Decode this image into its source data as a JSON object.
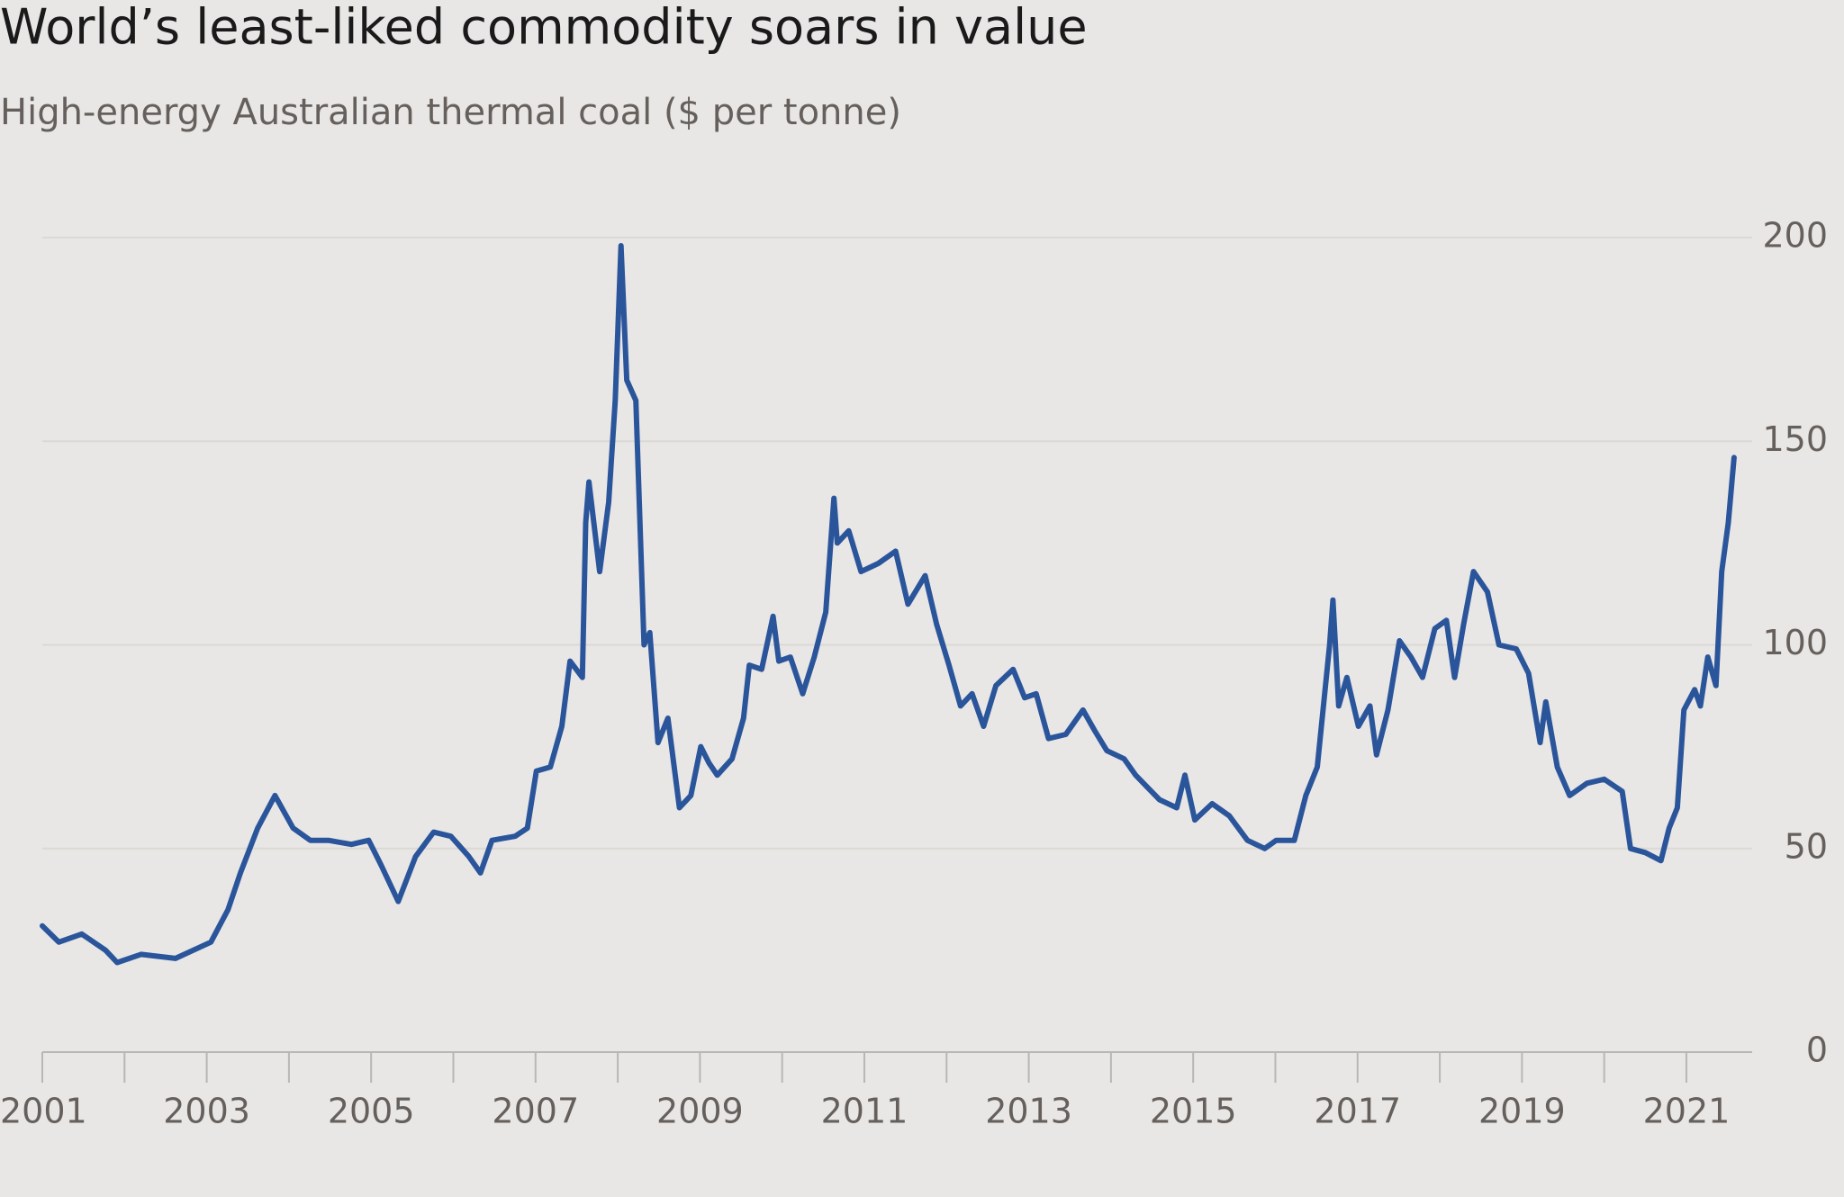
{
  "chart_data": {
    "type": "line",
    "title": "World’s least-liked commodity soars in value",
    "subtitle": "High-energy Australian thermal coal ($ per tonne)",
    "x": [
      2001.0,
      2001.2,
      2001.48,
      2001.77,
      2001.91,
      2002.2,
      2002.62,
      2003.05,
      2003.26,
      2003.41,
      2003.62,
      2003.83,
      2004.05,
      2004.26,
      2004.48,
      2004.76,
      2004.97,
      2005.12,
      2005.33,
      2005.54,
      2005.76,
      2005.97,
      2006.19,
      2006.33,
      2006.47,
      2006.75,
      2006.9,
      2007.01,
      2007.18,
      2007.32,
      2007.42,
      2007.57,
      2007.61,
      2007.65,
      2007.78,
      2007.89,
      2007.97,
      2008.04,
      2008.11,
      2008.22,
      2008.32,
      2008.39,
      2008.49,
      2008.61,
      2008.75,
      2008.89,
      2009.01,
      2009.11,
      2009.21,
      2009.39,
      2009.53,
      2009.6,
      2009.75,
      2009.89,
      2009.96,
      2010.1,
      2010.25,
      2010.39,
      2010.53,
      2010.63,
      2010.67,
      2010.81,
      2010.96,
      2011.17,
      2011.38,
      2011.53,
      2011.74,
      2011.88,
      2012.03,
      2012.17,
      2012.31,
      2012.45,
      2012.6,
      2012.81,
      2012.95,
      2013.09,
      2013.24,
      2013.45,
      2013.66,
      2013.8,
      2013.95,
      2014.16,
      2014.3,
      2014.59,
      2014.8,
      2014.9,
      2015.02,
      2015.23,
      2015.44,
      2015.66,
      2015.87,
      2016.01,
      2016.23,
      2016.37,
      2016.51,
      2016.66,
      2016.7,
      2016.77,
      2016.87,
      2017.01,
      2017.15,
      2017.23,
      2017.37,
      2017.51,
      2017.65,
      2017.79,
      2017.94,
      2018.08,
      2018.18,
      2018.29,
      2018.41,
      2018.58,
      2018.72,
      2018.93,
      2019.08,
      2019.22,
      2019.29,
      2019.43,
      2019.58,
      2019.79,
      2020.0,
      2020.22,
      2020.32,
      2020.5,
      2020.69,
      2020.79,
      2020.89,
      2020.97,
      2021.1,
      2021.17,
      2021.26,
      2021.36,
      2021.43,
      2021.51,
      2021.58
    ],
    "series": [
      {
        "color": "#2b559b",
        "values": [
          31,
          27,
          29,
          25,
          22,
          24,
          23,
          27,
          35,
          44,
          55,
          63,
          55,
          52,
          52,
          51,
          52,
          46,
          37,
          48,
          54,
          53,
          48,
          44,
          52,
          53,
          55,
          69,
          70,
          80,
          96,
          92,
          130,
          140,
          118,
          135,
          160,
          198,
          165,
          160,
          100,
          103,
          76,
          82,
          60,
          63,
          75,
          71,
          68,
          72,
          82,
          95,
          94,
          107,
          96,
          97,
          88,
          97,
          108,
          136,
          125,
          128,
          118,
          120,
          123,
          110,
          117,
          105,
          95,
          85,
          88,
          80,
          90,
          94,
          87,
          88,
          77,
          78,
          84,
          79,
          74,
          72,
          68,
          62,
          60,
          68,
          57,
          61,
          58,
          52,
          50,
          52,
          52,
          63,
          70,
          100,
          111,
          85,
          92,
          80,
          85,
          73,
          84,
          101,
          97,
          92,
          104,
          106,
          92,
          105,
          118,
          113,
          100,
          99,
          93,
          76,
          86,
          70,
          63,
          66,
          67,
          64,
          50,
          49,
          47,
          55,
          60,
          84,
          89,
          85,
          97,
          90,
          118,
          130,
          146
        ]
      }
    ],
    "xlim": [
      2001,
      2021.8
    ],
    "xticks": [
      2001,
      2003,
      2005,
      2007,
      2009,
      2011,
      2013,
      2015,
      2017,
      2019,
      2021
    ],
    "xminor_ticks": [
      2002,
      2004,
      2006,
      2008,
      2010,
      2012,
      2014,
      2016,
      2018,
      2020
    ],
    "ylim": [
      0,
      200
    ],
    "yticks": [
      0,
      50,
      100,
      150,
      200
    ],
    "grid": true
  }
}
